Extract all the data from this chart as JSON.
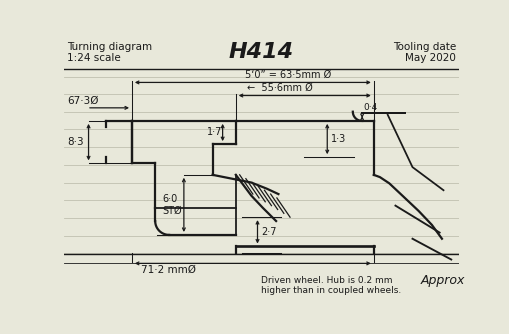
{
  "bg_color": "#e8e8da",
  "line_color": "#1a1a1a",
  "ruled_color": "#c0c0b0",
  "title_left": "Turning diagram\n1:24 scale",
  "title_center": "H414",
  "title_right": "Tooling date\nMay 2020",
  "note_text": "Driven wheel. Hub is 0.2 mm\nhigher than in coupled wheels.",
  "approx_text": "Approx",
  "dim_63": "5‘0” = 63·5mm Ø",
  "dim_556": "←  55·6mm Ø",
  "dim_673": "67·3Ø",
  "dim_83": "8·3",
  "dim_17": "1·7",
  "dim_13": "1·3",
  "dim_04": "0·4",
  "dim_60": "6·0\nSTØ",
  "dim_27": "2·7",
  "dim_712": "71·2 mmØ"
}
